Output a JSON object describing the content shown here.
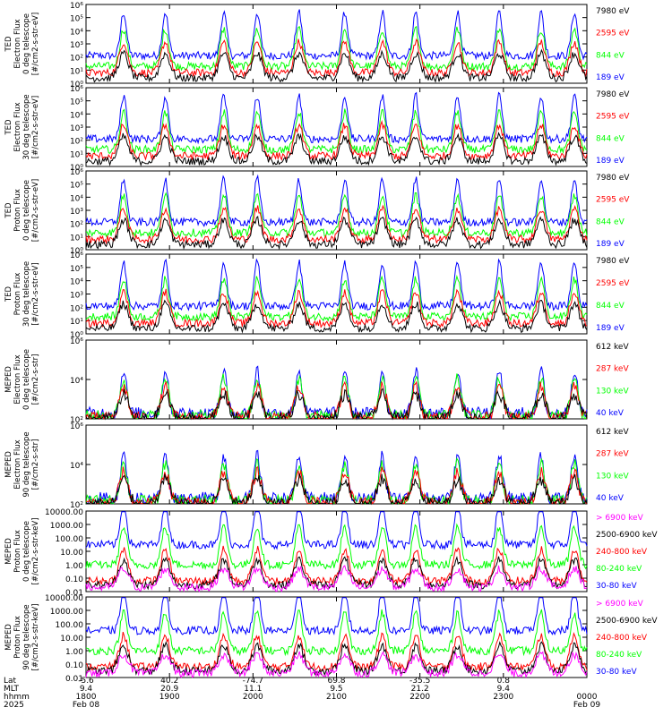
{
  "colors": {
    "blue": "#0000ff",
    "red": "#ff0000",
    "green": "#00ff00",
    "black": "#000000",
    "magenta": "#ff00ff"
  },
  "chart_data": [
    {
      "type": "line",
      "y_scale": "log",
      "ylim": [
        1,
        1000000
      ],
      "ylabel": [
        "TED",
        "Electron Flux",
        "0 deg telescope",
        "[#/cm2-s-str-eV]"
      ],
      "y_ticks": [
        "10⁰",
        "10¹",
        "10²",
        "10³",
        "10⁴",
        "10⁵",
        "10⁶"
      ],
      "legend": [
        {
          "name": "7980 eV",
          "color": "#000000"
        },
        {
          "name": "2595 eV",
          "color": "#ff0000"
        },
        {
          "name": "844 eV",
          "color": "#00ff00"
        },
        {
          "name": "189 eV",
          "color": "#0000ff"
        }
      ]
    },
    {
      "type": "line",
      "y_scale": "log",
      "ylim": [
        1,
        1000000
      ],
      "ylabel": [
        "TED",
        "Electron Flux",
        "30 deg telescope",
        "[#/cm2-s-str-eV]"
      ],
      "y_ticks": [
        "10⁰",
        "10¹",
        "10²",
        "10³",
        "10⁴",
        "10⁵",
        "10⁶"
      ],
      "legend": [
        {
          "name": "7980 eV",
          "color": "#000000"
        },
        {
          "name": "2595 eV",
          "color": "#ff0000"
        },
        {
          "name": "844 eV",
          "color": "#00ff00"
        },
        {
          "name": "189 eV",
          "color": "#0000ff"
        }
      ]
    },
    {
      "type": "line",
      "y_scale": "log",
      "ylim": [
        1,
        1000000
      ],
      "ylabel": [
        "TED",
        "Proton Flux",
        "0 deg telescope",
        "[#/cm2-s-str-eV]"
      ],
      "y_ticks": [
        "10⁰",
        "10¹",
        "10²",
        "10³",
        "10⁴",
        "10⁵",
        "10⁶"
      ],
      "legend": [
        {
          "name": "7980 eV",
          "color": "#000000"
        },
        {
          "name": "2595 eV",
          "color": "#ff0000"
        },
        {
          "name": "844 eV",
          "color": "#00ff00"
        },
        {
          "name": "189 eV",
          "color": "#0000ff"
        }
      ]
    },
    {
      "type": "line",
      "y_scale": "log",
      "ylim": [
        1,
        1000000
      ],
      "ylabel": [
        "TED",
        "Proton Flux",
        "30 deg telescope",
        "[#/cm2-s-str-eV]"
      ],
      "y_ticks": [
        "10⁰",
        "10¹",
        "10²",
        "10³",
        "10⁴",
        "10⁵",
        "10⁶"
      ],
      "legend": [
        {
          "name": "7980 eV",
          "color": "#000000"
        },
        {
          "name": "2595 eV",
          "color": "#ff0000"
        },
        {
          "name": "844 eV",
          "color": "#00ff00"
        },
        {
          "name": "189 eV",
          "color": "#0000ff"
        }
      ]
    },
    {
      "type": "line",
      "y_scale": "log",
      "ylim": [
        100,
        1000000
      ],
      "ylabel": [
        "MEPED",
        "Electron Flux",
        "0 deg telescope",
        "[#/cm2-s-str]"
      ],
      "y_ticks": [
        "10²",
        "10⁴",
        "10⁶"
      ],
      "legend": [
        {
          "name": "612 keV",
          "color": "#000000"
        },
        {
          "name": "287 keV",
          "color": "#ff0000"
        },
        {
          "name": "130 keV",
          "color": "#00ff00"
        },
        {
          "name": "40 keV",
          "color": "#0000ff"
        }
      ]
    },
    {
      "type": "line",
      "y_scale": "log",
      "ylim": [
        100,
        1000000
      ],
      "ylabel": [
        "MEPED",
        "Electron Flux",
        "90 deg telescope",
        "[#/cm2-s-str]"
      ],
      "y_ticks": [
        "10²",
        "10⁴",
        "10⁶"
      ],
      "legend": [
        {
          "name": "612 keV",
          "color": "#000000"
        },
        {
          "name": "287 keV",
          "color": "#ff0000"
        },
        {
          "name": "130 keV",
          "color": "#00ff00"
        },
        {
          "name": "40 keV",
          "color": "#0000ff"
        }
      ]
    },
    {
      "type": "line",
      "y_scale": "log",
      "ylim": [
        0.01,
        10000
      ],
      "ylabel": [
        "MEPED",
        "Proton Flux",
        "0 deg telescope",
        "[#/cm2-s-str-keV]"
      ],
      "y_ticks": [
        "0.01",
        "0.10",
        "1.00",
        "10.00",
        "100.00",
        "1000.00",
        "10000.00"
      ],
      "legend": [
        {
          "name": "> 6900 keV",
          "color": "#ff00ff"
        },
        {
          "name": "2500-6900 keV",
          "color": "#000000"
        },
        {
          "name": "240-800 keV",
          "color": "#ff0000"
        },
        {
          "name": "80-240 keV",
          "color": "#00ff00"
        },
        {
          "name": "30-80 keV",
          "color": "#0000ff"
        }
      ]
    },
    {
      "type": "line",
      "y_scale": "log",
      "ylim": [
        0.01,
        10000
      ],
      "ylabel": [
        "MEPED",
        "Proton Flux",
        "90 deg telescope",
        "[#/cm2-s-str-keV]"
      ],
      "y_ticks": [
        "0.01",
        "0.10",
        "1.00",
        "10.00",
        "100.00",
        "1000.00",
        "10000.00"
      ],
      "legend": [
        {
          "name": "> 6900 keV",
          "color": "#ff00ff"
        },
        {
          "name": "2500-6900 keV",
          "color": "#000000"
        },
        {
          "name": "240-800 keV",
          "color": "#ff0000"
        },
        {
          "name": "80-240 keV",
          "color": "#00ff00"
        },
        {
          "name": "30-80 keV",
          "color": "#0000ff"
        }
      ]
    }
  ],
  "x_axis": {
    "row_labels": [
      "Lat",
      "MLT",
      "hhmm",
      "2025"
    ],
    "xlim_hours": [
      18,
      24
    ],
    "ticks": [
      {
        "hour": 18,
        "lat": "-5.6",
        "mlt": "9.4",
        "hhmm": "1800",
        "date": "Feb 08"
      },
      {
        "hour": 19,
        "lat": "40.2",
        "mlt": "20.9",
        "hhmm": "1900",
        "date": ""
      },
      {
        "hour": 20,
        "lat": "-74.7",
        "mlt": "11.1",
        "hhmm": "2000",
        "date": ""
      },
      {
        "hour": 21,
        "lat": "69.8",
        "mlt": "9.5",
        "hhmm": "2100",
        "date": ""
      },
      {
        "hour": 22,
        "lat": "-35.5",
        "mlt": "21.2",
        "hhmm": "2200",
        "date": ""
      },
      {
        "hour": 23,
        "lat": "0.8",
        "mlt": "9.4",
        "hhmm": "2300",
        "date": ""
      },
      {
        "hour": 24,
        "lat": "",
        "mlt": "",
        "hhmm": "0000",
        "date": "Feb 09"
      }
    ]
  }
}
